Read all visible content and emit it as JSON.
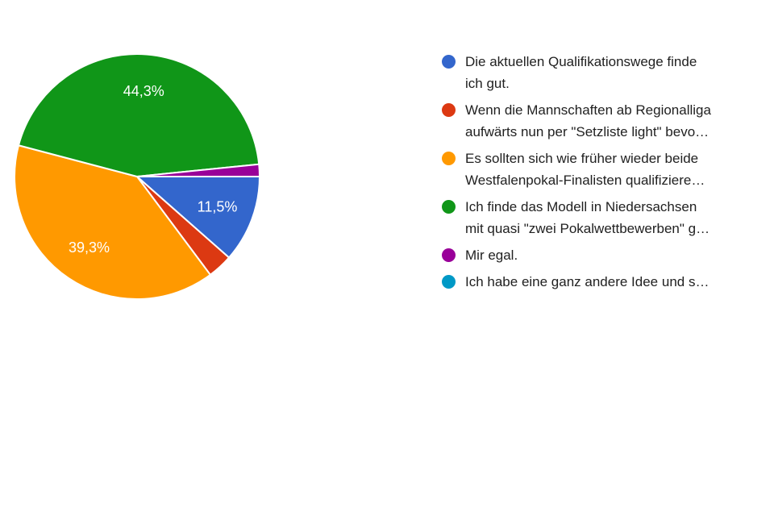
{
  "page": {
    "background_color": "#ffffff",
    "text_color": "#212121"
  },
  "chart_data": {
    "type": "pie",
    "title": "",
    "legend_position": "right",
    "start_angle_deg_clockwise_from_3oclock": 0,
    "direction": "clockwise",
    "separator_color": "#ffffff",
    "slices": [
      {
        "label": "Die aktuellen Qualifikationswege finde ich gut.",
        "value": 11.5,
        "display_label": "11,5%",
        "color": "#3366CC"
      },
      {
        "label": "Wenn die Mannschaften ab Regionalliga aufwärts nun per \"Setzliste light\" bevo…",
        "value": 3.3,
        "display_label": "",
        "color": "#DC3912"
      },
      {
        "label": "Es sollten sich wie früher wieder beide Westfalenpokal-Finalisten qualifiziere…",
        "value": 39.3,
        "display_label": "39,3%",
        "color": "#FF9900"
      },
      {
        "label": "Ich finde das Modell in Niedersachsen mit quasi \"zwei Pokalwettbewerben\" g…",
        "value": 44.3,
        "display_label": "44,3%",
        "color": "#109618"
      },
      {
        "label": "Mir egal.",
        "value": 1.6,
        "display_label": "",
        "color": "#990099"
      },
      {
        "label": "Ich habe eine ganz andere Idee und s…",
        "value": 0,
        "display_label": "",
        "color": "#0099C6"
      }
    ]
  },
  "legend": {
    "items": [
      {
        "color": "#3366CC",
        "lines": [
          "Die aktuellen Qualifikationswege finde",
          "ich gut."
        ]
      },
      {
        "color": "#DC3912",
        "lines": [
          "Wenn die Mannschaften ab Regionalliga",
          "aufwärts nun per \"Setzliste light\" bevo…"
        ]
      },
      {
        "color": "#FF9900",
        "lines": [
          "Es sollten sich wie früher wieder beide",
          "Westfalenpokal-Finalisten qualifiziere…"
        ]
      },
      {
        "color": "#109618",
        "lines": [
          "Ich finde das Modell in Niedersachsen",
          "mit quasi \"zwei Pokalwettbewerben\" g…"
        ]
      },
      {
        "color": "#990099",
        "lines": [
          "Mir egal."
        ]
      },
      {
        "color": "#0099C6",
        "lines": [
          "Ich habe eine ganz andere Idee und s…"
        ]
      }
    ]
  }
}
